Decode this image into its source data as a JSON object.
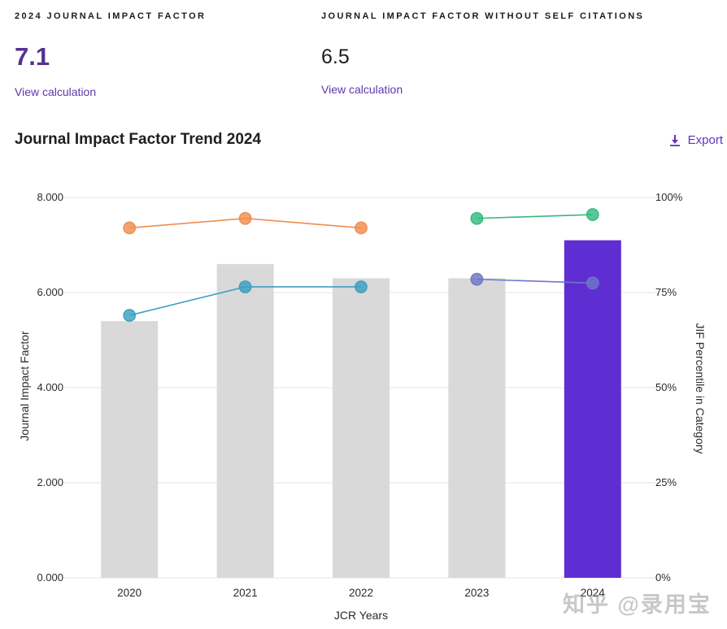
{
  "stats": {
    "jif": {
      "label": "2024 JOURNAL IMPACT FACTOR",
      "value": "7.1",
      "link": "View calculation"
    },
    "jif_without_self": {
      "label": "JOURNAL IMPACT FACTOR WITHOUT SELF CITATIONS",
      "value": "6.5",
      "link": "View calculation"
    }
  },
  "section": {
    "title": "Journal Impact Factor Trend 2024",
    "export_label": "Export",
    "export_icon": "download-icon"
  },
  "watermark": "知乎 @录用宝",
  "colors": {
    "accent_purple": "#5e33bf",
    "bar_gray": "#d9d9d9",
    "bar_purple": "#5f2ed2",
    "line_orange": "#ef8d51",
    "line_teal": "#3d9fc0",
    "line_green": "#36b97e",
    "line_slate": "#6d76c7",
    "grid": "#e3e3e3"
  },
  "chart_data": {
    "type": "bar",
    "title": "Journal Impact Factor Trend 2024",
    "categories": [
      "2020",
      "2021",
      "2022",
      "2023",
      "2024"
    ],
    "bars": {
      "name": "Journal Impact Factor",
      "values": [
        5.4,
        6.6,
        6.3,
        6.3,
        7.1
      ],
      "highlight_index": 4
    },
    "line_series": [
      {
        "name": "jif-percentile-line-1",
        "axis": "right",
        "color_key": "line_orange",
        "categories": [
          "2020",
          "2021",
          "2022"
        ],
        "values": [
          92,
          94.5,
          92
        ]
      },
      {
        "name": "jif-percentile-line-2",
        "axis": "right",
        "color_key": "line_teal",
        "categories": [
          "2020",
          "2021",
          "2022"
        ],
        "values": [
          69,
          76.5,
          76.5
        ]
      },
      {
        "name": "jif-percentile-line-3",
        "axis": "right",
        "color_key": "line_green",
        "categories": [
          "2023",
          "2024"
        ],
        "values": [
          94.5,
          95.5
        ]
      },
      {
        "name": "jif-percentile-line-4",
        "axis": "right",
        "color_key": "line_slate",
        "categories": [
          "2023",
          "2024"
        ],
        "values": [
          78.5,
          77.5
        ]
      }
    ],
    "left_axis": {
      "label": "Journal Impact Factor",
      "min": 0,
      "max": 8,
      "ticks": [
        "8.000",
        "6.000",
        "4.000",
        "2.000",
        "0.000"
      ]
    },
    "right_axis": {
      "label": "JIF Percentile in Category",
      "min": 0,
      "max": 100,
      "ticks": [
        "100%",
        "75%",
        "50%",
        "25%",
        "0%"
      ]
    },
    "xlabel": "JCR Years",
    "grid": true,
    "legend": false
  }
}
